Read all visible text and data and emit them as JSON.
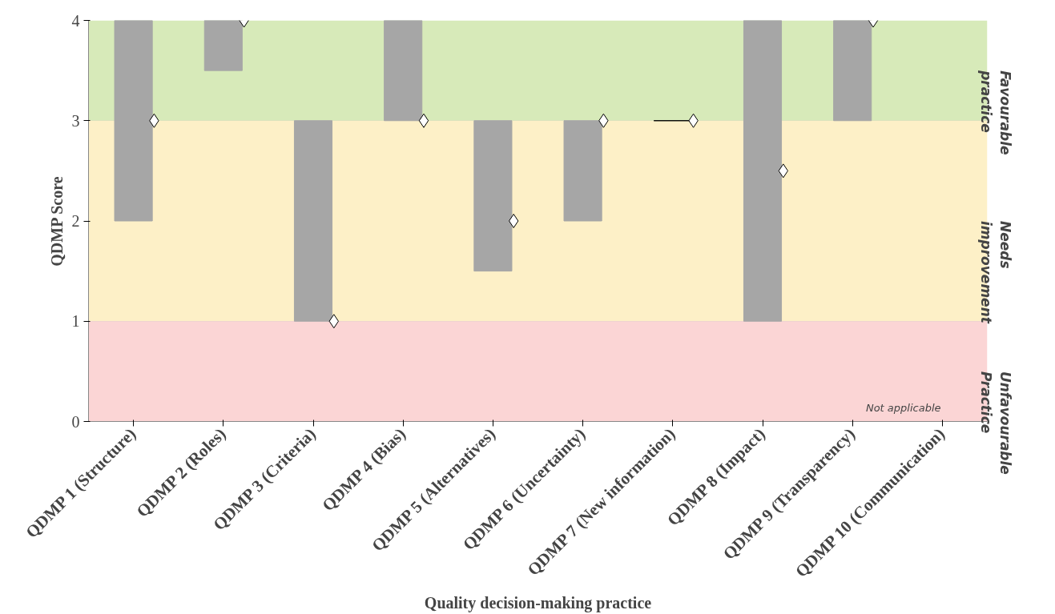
{
  "chart_data": {
    "type": "bar",
    "xlabel": "Quality decision-making practice",
    "ylabel": "QDMP Score",
    "categories": [
      "QDMP 1 (Structure)",
      "QDMP 2 (Roles)",
      "QDMP 3 (Criteria)",
      "QDMP 4 (Bias)",
      "QDMP 5 (Alternatives)",
      "QDMP 6 (Uncertainty)",
      "QDMP 7 (New information)",
      "QDMP 8 (Impact)",
      "QDMP 9 (Transparency)",
      "QDMP 10 (Communication)"
    ],
    "series": [
      {
        "colors": [
          "#a6a6a6",
          "#a6a6a6",
          "#a6a6a6",
          "#a6a6a6",
          "#a6a6a6",
          "#a6a6a6",
          "#000000",
          "#a6a6a6",
          "#a6a6a6",
          "#a6a6a6"
        ],
        "values": [
          2,
          0.5,
          2,
          1,
          1.5,
          1,
          0,
          3,
          1,
          null
        ],
        "base": [
          2,
          3.5,
          1,
          3,
          1.5,
          2,
          3,
          1,
          3,
          null
        ]
      },
      {
        "type": "scatter",
        "color": "#ffffff",
        "marker": "diamond",
        "values": [
          3,
          4,
          1,
          3,
          2,
          3,
          3,
          2.5,
          4,
          null
        ]
      }
    ],
    "ylim": [
      0,
      4
    ],
    "yticks": [
      0,
      1,
      2,
      3,
      4
    ],
    "grid": "y",
    "bands": [
      {
        "axis": "y",
        "from": 3,
        "to": 4,
        "label": "Favourable practice",
        "color": "#d7eab9"
      },
      {
        "axis": "y",
        "from": 1,
        "to": 3,
        "label": "Needs improvement",
        "color": "#fdf0c7"
      },
      {
        "axis": "y",
        "from": 0,
        "to": 1,
        "label": "Unfavourable Practice",
        "color": "#fbd5d5"
      }
    ],
    "annotations": [
      "Not applicable"
    ]
  }
}
